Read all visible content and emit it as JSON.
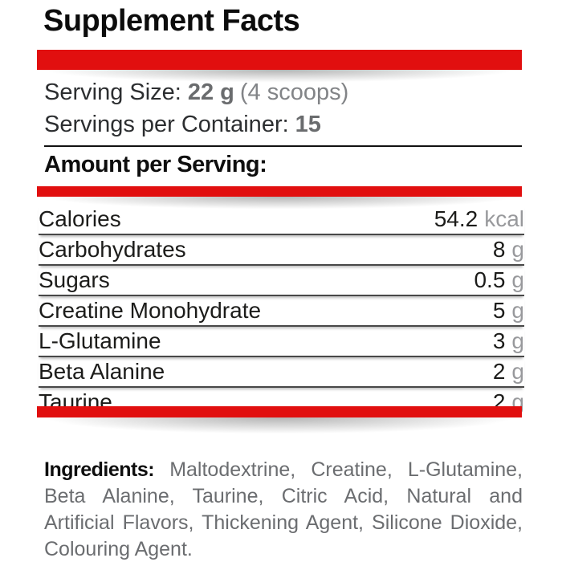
{
  "title": "Supplement Facts",
  "colors": {
    "accent_red": "#e10f0f",
    "dark_text": "#1c1c1a",
    "muted_gray": "#6b6d70",
    "unit_gray": "#98999c"
  },
  "serving": {
    "size_label": "Serving Size:",
    "size_value": "22 g",
    "size_note": "(4 scoops)",
    "per_container_label": "Servings per Container:",
    "per_container_value": "15"
  },
  "amount_header": "Amount per Serving:",
  "nutrients": [
    {
      "name": "Calories",
      "value": "54.2",
      "unit": "kcal"
    },
    {
      "name": "Carbohydrates",
      "value": "8",
      "unit": "g"
    },
    {
      "name": "Sugars",
      "value": "0.5",
      "unit": "g"
    },
    {
      "name": "Creatine Monohydrate",
      "value": "5",
      "unit": "g"
    },
    {
      "name": "L-Glutamine",
      "value": "3",
      "unit": "g"
    },
    {
      "name": "Beta Alanine",
      "value": "2",
      "unit": "g"
    },
    {
      "name": "Taurine",
      "value": "2",
      "unit": "g"
    }
  ],
  "ingredients": {
    "label": "Ingredients:",
    "text": "Maltodextrine, Creatine, L-Glutamine, Beta Alanine, Taurine, Citric Acid, Natural and Artificial Flavors, Thickening Agent, Silicone Dioxide, Colouring Agent."
  }
}
